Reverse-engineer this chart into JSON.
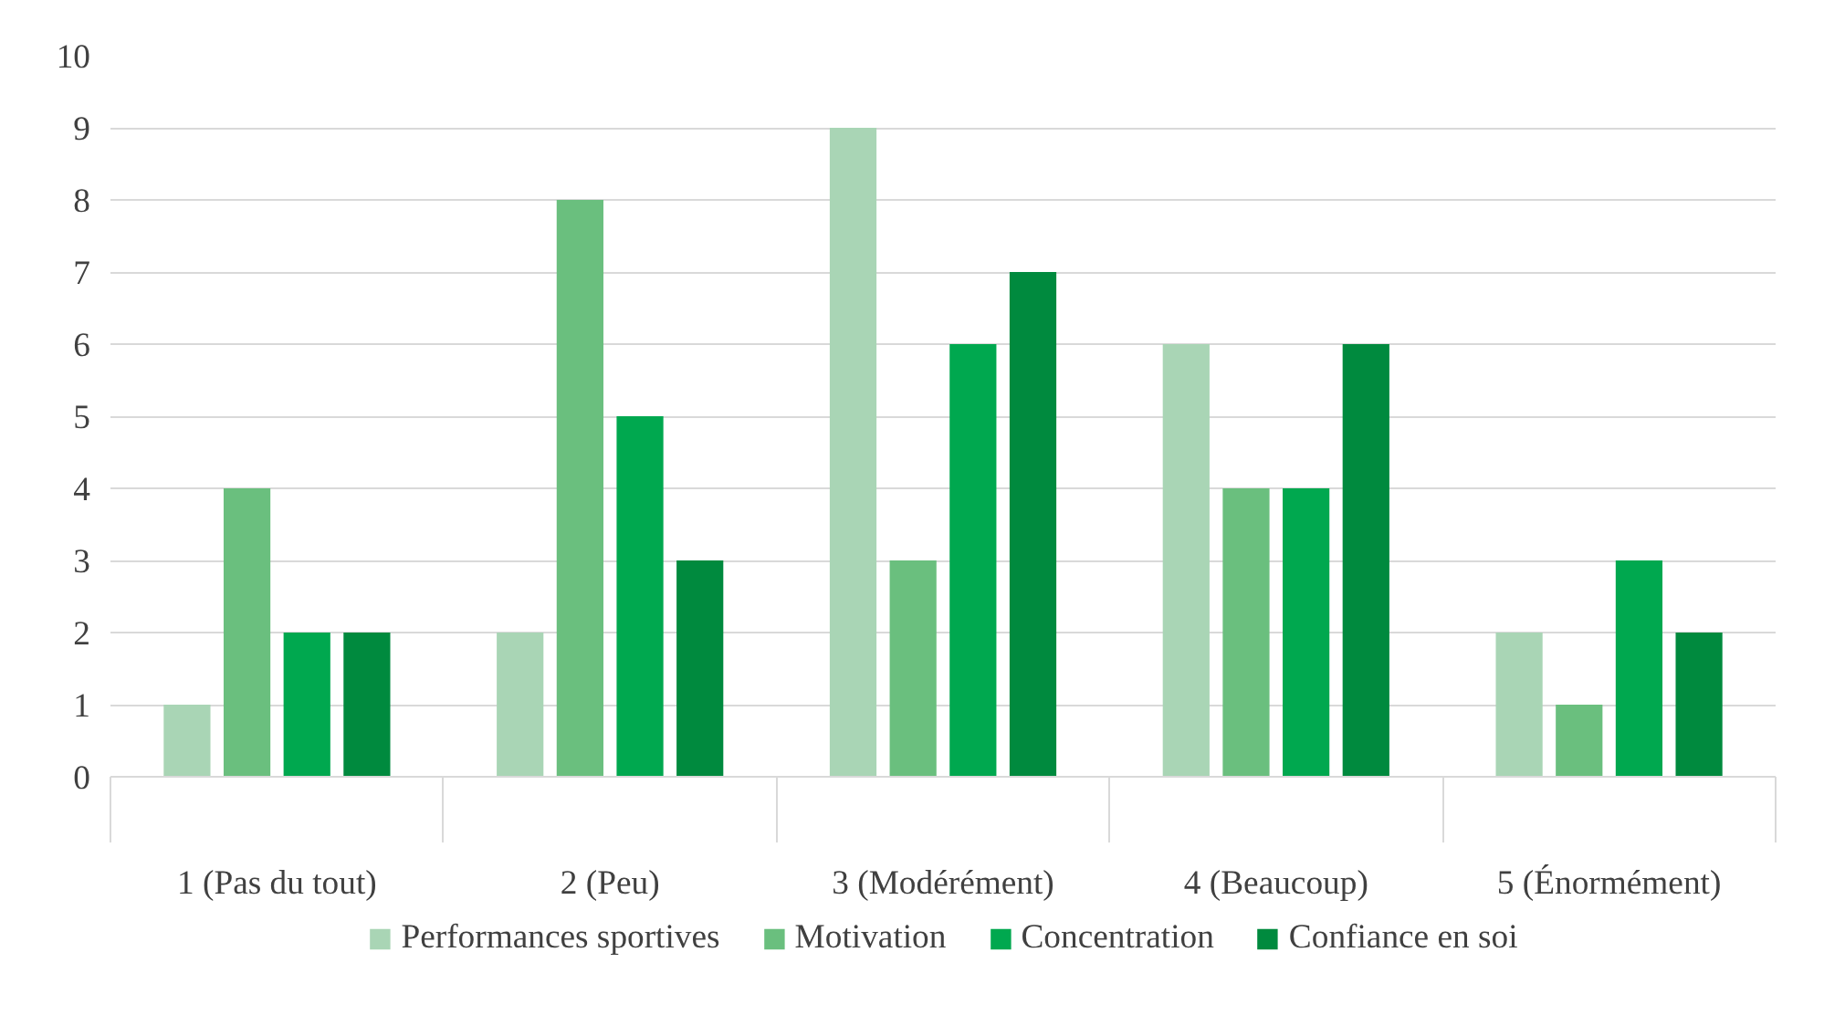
{
  "chart_data": {
    "type": "bar",
    "categories": [
      "1 (Pas du tout)",
      "2 (Peu)",
      "3 (Modérément)",
      "4 (Beaucoup)",
      "5 (Énormément)"
    ],
    "series": [
      {
        "name": "Performances sportives",
        "color": "#a9d5b5",
        "values": [
          1,
          2,
          9,
          6,
          2
        ]
      },
      {
        "name": "Motivation",
        "color": "#6abf7e",
        "values": [
          4,
          8,
          3,
          4,
          1
        ]
      },
      {
        "name": "Concentration",
        "color": "#00a84f",
        "values": [
          2,
          5,
          6,
          4,
          3
        ]
      },
      {
        "name": "Confiance en soi",
        "color": "#008a3e",
        "values": [
          2,
          3,
          7,
          6,
          2
        ]
      }
    ],
    "ylim": [
      0,
      10
    ],
    "yticks": [
      0,
      1,
      2,
      3,
      4,
      5,
      6,
      7,
      8,
      9,
      10
    ],
    "grid": "y",
    "legend": "bottom"
  }
}
